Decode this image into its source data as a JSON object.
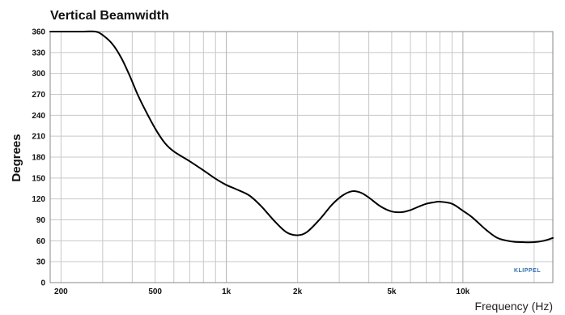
{
  "chart_data": {
    "type": "line",
    "title": "Vertical Beamwidth",
    "xlabel": "Frequency (Hz)",
    "ylabel": "Degrees",
    "xscale": "log",
    "xlim": [
      180,
      24000
    ],
    "ylim": [
      0,
      360
    ],
    "grid": true,
    "yticks": [
      0,
      30,
      60,
      90,
      120,
      150,
      180,
      210,
      240,
      270,
      300,
      330,
      360
    ],
    "xticks": [
      {
        "value": 200,
        "label": "200"
      },
      {
        "value": 500,
        "label": "500"
      },
      {
        "value": 1000,
        "label": "1k"
      },
      {
        "value": 2000,
        "label": "2k"
      },
      {
        "value": 5000,
        "label": "5k"
      },
      {
        "value": 10000,
        "label": "10k"
      }
    ],
    "series": [
      {
        "x": [
          180,
          200,
          250,
          280,
          300,
          330,
          360,
          390,
          420,
          450,
          500,
          550,
          600,
          700,
          800,
          900,
          1000,
          1100,
          1250,
          1400,
          1600,
          1800,
          2000,
          2200,
          2500,
          2800,
          3100,
          3400,
          3700,
          4000,
          4500,
          5000,
          5500,
          6000,
          6500,
          7000,
          7500,
          8000,
          9000,
          10000,
          11000,
          12500,
          14000,
          16000,
          18000,
          20000,
          22000,
          24000
        ],
        "y": [
          360,
          360,
          360,
          360,
          355,
          342,
          322,
          297,
          271,
          250,
          221,
          200,
          188,
          174,
          161,
          149,
          140,
          134,
          125,
          110,
          88,
          72,
          68,
          73,
          92,
          112,
          125,
          131,
          129,
          122,
          109,
          102,
          101,
          104,
          109,
          113,
          115,
          116,
          113,
          103,
          93,
          76,
          64,
          59,
          58,
          58,
          60,
          64
        ]
      }
    ],
    "watermark": "KLIPPEL"
  }
}
